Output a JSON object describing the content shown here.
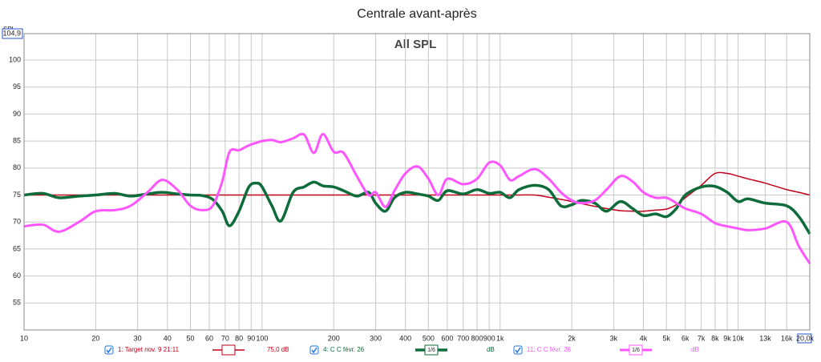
{
  "chart_data": {
    "type": "line",
    "title": "Centrale avant-après",
    "subtitle": "All SPL",
    "y_label": "SPL",
    "xscale": "log",
    "xlim": [
      10,
      20000
    ],
    "ylim": [
      50,
      104.9
    ],
    "grid": true,
    "xticks": [
      10,
      20,
      30,
      40,
      50,
      60,
      70,
      80,
      90,
      100,
      200,
      300,
      400,
      500,
      600,
      700,
      800,
      900,
      {
        "value": 1000,
        "label": "1k"
      },
      {
        "value": 2000,
        "label": "2k"
      },
      {
        "value": 3000,
        "label": "3k"
      },
      {
        "value": 4000,
        "label": "4k"
      },
      {
        "value": 5000,
        "label": "5k"
      },
      {
        "value": 6000,
        "label": "6k"
      },
      {
        "value": 7000,
        "label": "7k"
      },
      {
        "value": 8000,
        "label": "8k"
      },
      {
        "value": 9000,
        "label": "9k"
      },
      {
        "value": 10000,
        "label": "10k"
      },
      {
        "value": 13000,
        "label": "13k"
      },
      {
        "value": 16000,
        "label": "16k"
      },
      {
        "value": 20000,
        "label": "20,0k"
      }
    ],
    "yticks": [
      55,
      60,
      65,
      70,
      75,
      80,
      85,
      90,
      95,
      100,
      {
        "value": 104.9,
        "label": "104,9"
      }
    ],
    "x": [
      10,
      12,
      14,
      17,
      20,
      24,
      28,
      33,
      38,
      44,
      50,
      56,
      62,
      68,
      73,
      80,
      88,
      95,
      100,
      110,
      120,
      135,
      150,
      165,
      180,
      200,
      220,
      250,
      280,
      300,
      330,
      360,
      400,
      450,
      500,
      550,
      600,
      700,
      800,
      900,
      1000,
      1100,
      1200,
      1400,
      1600,
      1800,
      2000,
      2200,
      2500,
      2800,
      3200,
      3600,
      4000,
      4500,
      5000,
      5500,
      6000,
      7000,
      8000,
      9000,
      10000,
      11000,
      13000,
      16000,
      18000,
      20000
    ],
    "series": [
      {
        "name": "1: Target nov. 9 21:11",
        "color": "#c0001a",
        "width": 1.5,
        "offset_label": "75,0 dB",
        "values": [
          75,
          75,
          75,
          75,
          75,
          75,
          75,
          75,
          75,
          75,
          75,
          75,
          75,
          75,
          75,
          75,
          75,
          75,
          75,
          75,
          75,
          75,
          75,
          75,
          75,
          75,
          75,
          75,
          75,
          75,
          75,
          75,
          75,
          75,
          75,
          75,
          75,
          75,
          75,
          75,
          75,
          75,
          75,
          75,
          74.6,
          74.2,
          73.8,
          73.4,
          72.9,
          72.5,
          72.1,
          72,
          72,
          72.2,
          72.4,
          73.2,
          74.5,
          76.8,
          79,
          79,
          78.5,
          78,
          77.2,
          76,
          75.5,
          75
        ]
      },
      {
        "name": "4: C C févr. 26",
        "color": "#0e6b3a",
        "width": 3.5,
        "smoothing": "1/6",
        "offset_label": "dB",
        "values": [
          75,
          75.3,
          74.5,
          74.8,
          75,
          75.3,
          74.8,
          75.2,
          75.5,
          75.2,
          75,
          74.9,
          74.2,
          72,
          69.3,
          72,
          76.5,
          77.2,
          76.5,
          73,
          70.2,
          75.5,
          76.5,
          77.4,
          76.7,
          76.5,
          75.8,
          74.8,
          75.5,
          73.5,
          72,
          74.5,
          75.5,
          75.2,
          74.8,
          74,
          75.8,
          75.2,
          76,
          75.3,
          75.5,
          74.5,
          76,
          76.8,
          76,
          73,
          73.2,
          74,
          73.5,
          72,
          73.8,
          72.5,
          71.2,
          71.5,
          71,
          72.5,
          75,
          76.5,
          76.6,
          75.5,
          73.8,
          74.3,
          73.5,
          73,
          71,
          67.8
        ]
      },
      {
        "name": "11: C C févr. 26",
        "color": "#ff55ff",
        "width": 3,
        "smoothing": "1/6",
        "offset_label": "dB",
        "values": [
          69.2,
          69.5,
          68.2,
          70,
          72,
          72.2,
          73,
          75.5,
          77.8,
          76,
          73,
          72.2,
          73,
          77.5,
          83,
          83.3,
          84.2,
          84.7,
          85,
          85.2,
          84.8,
          85.5,
          86.2,
          82.8,
          86.3,
          83,
          82.8,
          78.5,
          75,
          75.5,
          72.8,
          75.8,
          79,
          80.3,
          78,
          75,
          78,
          77,
          78,
          81,
          80.5,
          77.8,
          78.5,
          79.8,
          78,
          75.5,
          74,
          73.5,
          74,
          76,
          78.5,
          77.5,
          75.5,
          74.5,
          74.5,
          73.5,
          72.5,
          71.5,
          69.8,
          69.2,
          68.8,
          68.5,
          68.8,
          70,
          65.5,
          62.3
        ]
      }
    ]
  }
}
